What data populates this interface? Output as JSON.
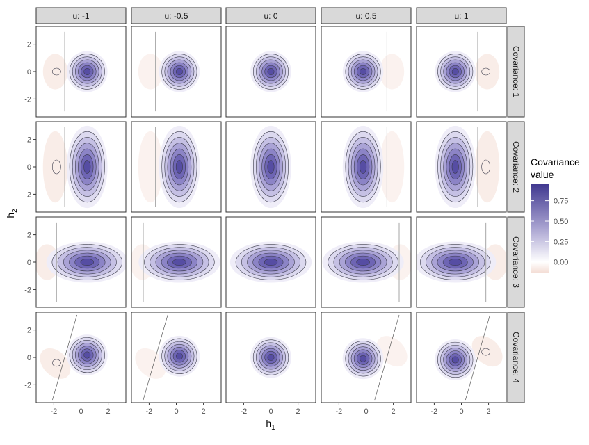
{
  "chart_data": {
    "type": "heatmap",
    "facet_cols_label": "u: ",
    "facet_rows_label": "Covariance: ",
    "u_values": [
      "-1",
      "-0.5",
      "0",
      "0.5",
      "1"
    ],
    "covariance_values": [
      "1",
      "2",
      "3",
      "4"
    ],
    "xlabel": "h",
    "xlabel_sub": "1",
    "ylabel": "h",
    "ylabel_sub": "2",
    "xlim": [
      -3.3,
      3.3
    ],
    "ylim": [
      -3.3,
      3.3
    ],
    "x_ticks": [
      -2,
      0,
      2
    ],
    "y_ticks": [
      -2,
      0,
      2
    ],
    "x_tick_labels": [
      "-2",
      "0",
      "2"
    ],
    "y_tick_labels": [
      "-2",
      "0",
      "2"
    ],
    "legend": {
      "title_line1": "Covariance",
      "title_line2": "value",
      "ticks": [
        0.0,
        0.25,
        0.5,
        0.75
      ],
      "tick_labels": [
        "0.00",
        "0.25",
        "0.50",
        "0.75"
      ],
      "range": [
        -0.13,
        0.96
      ],
      "colors": {
        "low": "#f4ded6",
        "mid": "#ffffff",
        "high": "#3f378f"
      }
    },
    "grid": false,
    "legend_position": "right",
    "zero_contour_color": "#a6a6a6",
    "contour_color": "#3a3a4a",
    "rows": [
      {
        "covariance": "1",
        "sx": 1.0,
        "sy": 1.0,
        "rho": 0.0
      },
      {
        "covariance": "2",
        "sx": 1.0,
        "sy": 2.0,
        "rho": 0.0
      },
      {
        "covariance": "3",
        "sx": 2.0,
        "sy": 1.0,
        "rho": 0.0
      },
      {
        "covariance": "4",
        "sx": 1.0,
        "sy": 1.0,
        "rho": 0.7
      }
    ]
  }
}
